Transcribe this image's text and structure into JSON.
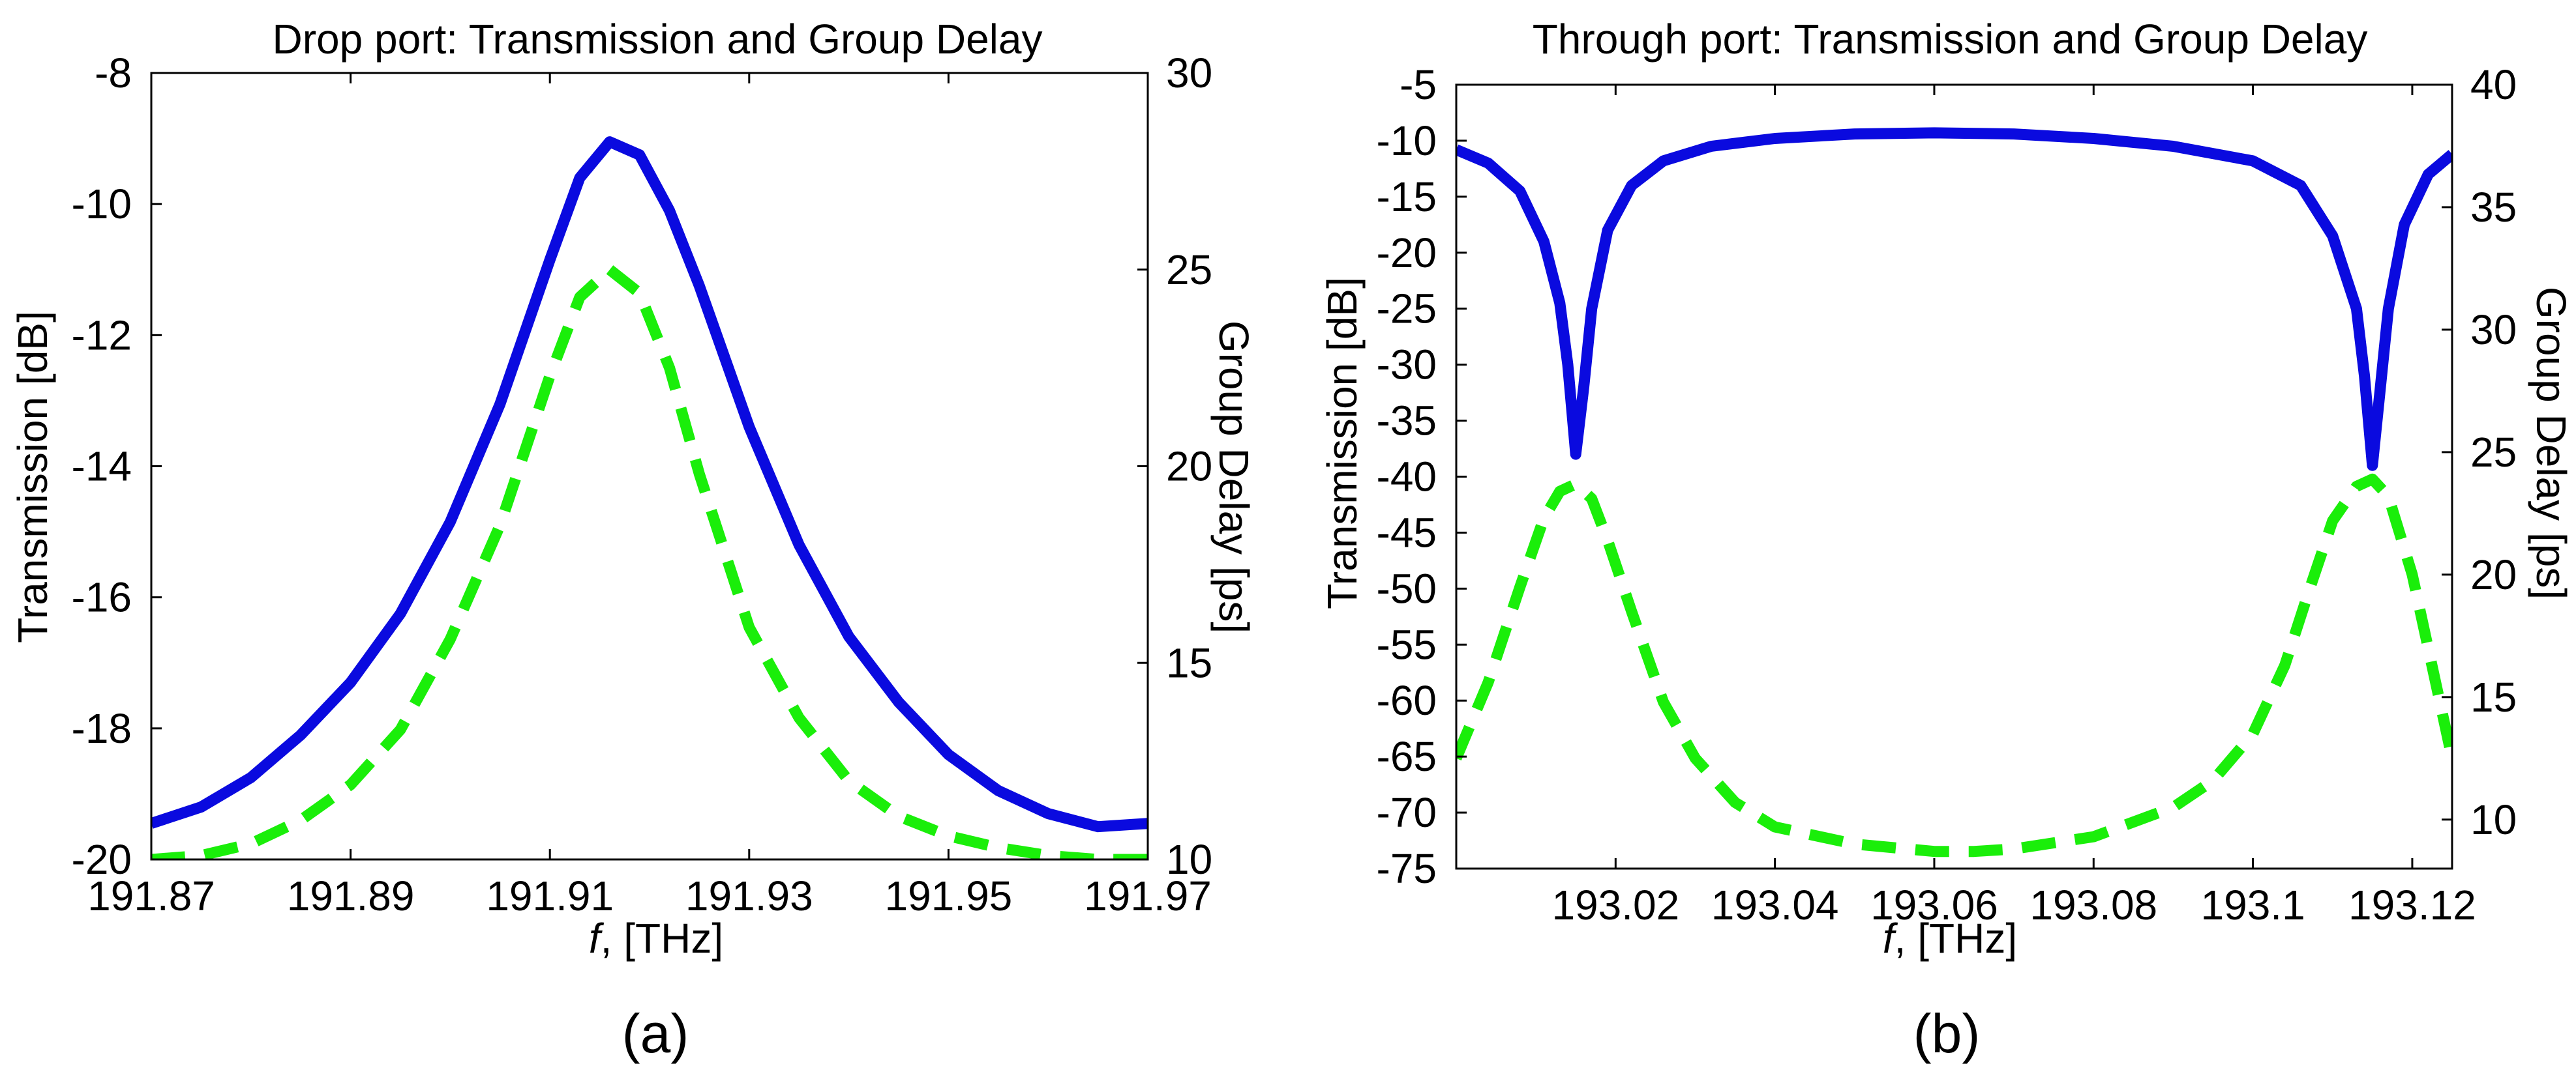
{
  "chart_data": [
    {
      "type": "line",
      "title": "Drop port: Transmission and Group Delay",
      "xlabel_italic": "f",
      "xlabel_rest": ", [THz]",
      "ylabel": "Transmission [dB]",
      "y2label": "Group Delay [ps]",
      "panel_label": "(a)",
      "xlim": [
        191.87,
        191.97
      ],
      "ylim": [
        -20,
        -8
      ],
      "y2lim": [
        10,
        30
      ],
      "xticks": [
        "191.87",
        "191.89",
        "191.91",
        "191.93",
        "191.95",
        "191.97"
      ],
      "yticks": [
        "-8",
        "-10",
        "-12",
        "-14",
        "-16",
        "-18",
        "-20"
      ],
      "y2ticks": [
        "30",
        "25",
        "20",
        "15",
        "10"
      ],
      "grid": false,
      "series": [
        {
          "axis": "left",
          "color": "#0a0adf",
          "dashed": false,
          "x": [
            191.87,
            191.875,
            191.88,
            191.885,
            191.89,
            191.895,
            191.9,
            191.905,
            191.91,
            191.913,
            191.916,
            191.919,
            191.922,
            191.925,
            191.93,
            191.935,
            191.94,
            191.945,
            191.95,
            191.955,
            191.96,
            191.965,
            191.97
          ],
          "values": [
            -19.45,
            -19.2,
            -18.75,
            -18.1,
            -17.3,
            -16.25,
            -14.85,
            -13.05,
            -10.85,
            -9.6,
            -9.05,
            -9.25,
            -10.1,
            -11.25,
            -13.4,
            -15.2,
            -16.6,
            -17.6,
            -18.4,
            -18.95,
            -19.3,
            -19.5,
            -19.45
          ]
        },
        {
          "axis": "right",
          "color": "#1aee0a",
          "dashed": true,
          "x": [
            191.87,
            191.875,
            191.88,
            191.885,
            191.89,
            191.895,
            191.9,
            191.905,
            191.91,
            191.913,
            191.916,
            191.919,
            191.922,
            191.925,
            191.93,
            191.935,
            191.94,
            191.945,
            191.95,
            191.955,
            191.96,
            191.965,
            191.97
          ],
          "values": [
            10.0,
            10.1,
            10.4,
            11.0,
            11.9,
            13.3,
            15.6,
            18.5,
            22.3,
            24.3,
            25.0,
            24.4,
            22.5,
            19.8,
            15.9,
            13.6,
            12.0,
            11.1,
            10.6,
            10.3,
            10.1,
            10.0,
            10.0
          ]
        }
      ]
    },
    {
      "type": "line",
      "title": "Through port: Transmission and Group Delay",
      "xlabel_italic": "f",
      "xlabel_rest": ", [THz]",
      "ylabel": "Transmission [dB]",
      "y2label": "Group Delay [ps]",
      "panel_label": "(b)",
      "xlim": [
        193.0,
        193.125
      ],
      "ylim": [
        -75,
        -5
      ],
      "y2lim": [
        8,
        40
      ],
      "xticks": [
        "193.02",
        "193.04",
        "193.06",
        "193.08",
        "193.1",
        "193.12"
      ],
      "yticks": [
        "-5",
        "-10",
        "-15",
        "-20",
        "-25",
        "-30",
        "-35",
        "-40",
        "-45",
        "-50",
        "-55",
        "-60",
        "-65",
        "-70",
        "-75"
      ],
      "y2ticks": [
        "40",
        "35",
        "30",
        "25",
        "20",
        "15",
        "10"
      ],
      "grid": false,
      "series": [
        {
          "axis": "left",
          "color": "#0a0adf",
          "dashed": false,
          "x": [
            193.0,
            193.004,
            193.008,
            193.011,
            193.013,
            193.014,
            193.015,
            193.016,
            193.017,
            193.019,
            193.022,
            193.026,
            193.032,
            193.04,
            193.05,
            193.06,
            193.07,
            193.08,
            193.09,
            193.1,
            193.106,
            193.11,
            193.113,
            193.114,
            193.115,
            193.116,
            193.117,
            193.119,
            193.122,
            193.125
          ],
          "values": [
            -10.8,
            -12.0,
            -14.5,
            -19.0,
            -24.5,
            -30.0,
            -38.0,
            -32.0,
            -25.0,
            -18.0,
            -14.0,
            -11.8,
            -10.5,
            -9.8,
            -9.4,
            -9.3,
            -9.4,
            -9.8,
            -10.5,
            -11.8,
            -14.0,
            -18.5,
            -25.0,
            -31.0,
            -39.0,
            -32.0,
            -25.0,
            -17.5,
            -13.0,
            -11.2
          ]
        },
        {
          "axis": "right",
          "color": "#1aee0a",
          "dashed": true,
          "x": [
            193.0,
            193.004,
            193.008,
            193.011,
            193.013,
            193.015,
            193.017,
            193.019,
            193.022,
            193.026,
            193.03,
            193.035,
            193.04,
            193.05,
            193.06,
            193.065,
            193.07,
            193.08,
            193.09,
            193.095,
            193.1,
            193.104,
            193.107,
            193.11,
            193.113,
            193.115,
            193.117,
            193.12,
            193.125
          ],
          "values": [
            12.5,
            15.6,
            19.5,
            22.3,
            23.4,
            23.7,
            23.1,
            21.4,
            18.5,
            14.8,
            12.5,
            10.7,
            9.7,
            9.0,
            8.7,
            8.7,
            8.8,
            9.3,
            10.5,
            11.6,
            13.5,
            16.3,
            19.3,
            22.2,
            23.6,
            23.9,
            23.2,
            20.0,
            12.5
          ]
        }
      ]
    }
  ]
}
